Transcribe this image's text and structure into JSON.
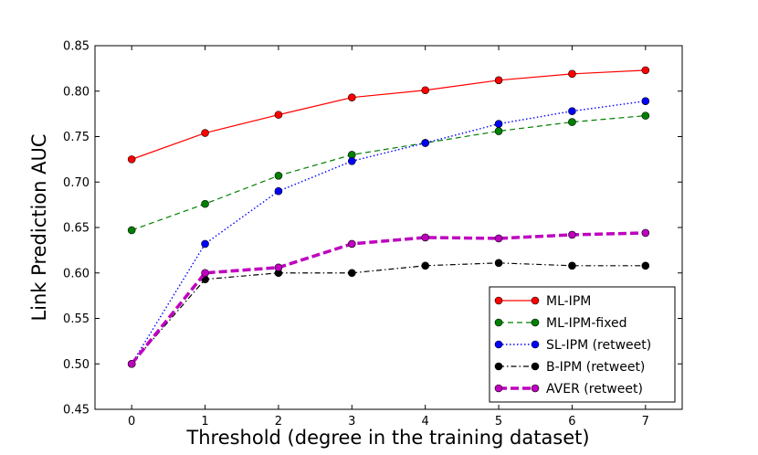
{
  "chart_data": {
    "type": "line",
    "title": "",
    "xlabel": "Threshold (degree in the training dataset)",
    "ylabel": "Link Prediction AUC",
    "xlim": [
      -0.5,
      7.5
    ],
    "ylim": [
      0.45,
      0.85
    ],
    "xticks": [
      "0",
      "1",
      "2",
      "3",
      "4",
      "5",
      "6",
      "7"
    ],
    "yticks": [
      "0.45",
      "0.50",
      "0.55",
      "0.60",
      "0.65",
      "0.70",
      "0.75",
      "0.80",
      "0.85"
    ],
    "grid": false,
    "legend_position": "bottom-right",
    "x": [
      0,
      1,
      2,
      3,
      4,
      5,
      6,
      7
    ],
    "series": [
      {
        "name": "ML-IPM",
        "color": "#ff0000",
        "style": "solid",
        "values": [
          0.725,
          0.754,
          0.774,
          0.793,
          0.801,
          0.812,
          0.819,
          0.823
        ]
      },
      {
        "name": "ML-IPM-fixed",
        "color": "#008000",
        "style": "dashed",
        "values": [
          0.647,
          0.676,
          0.707,
          0.73,
          0.743,
          0.756,
          0.766,
          0.773
        ]
      },
      {
        "name": "SL-IPM (retweet)",
        "color": "#0000ff",
        "style": "dotted",
        "values": [
          0.5,
          0.632,
          0.69,
          0.723,
          0.743,
          0.764,
          0.778,
          0.789
        ]
      },
      {
        "name": "B-IPM (retweet)",
        "color": "#000000",
        "style": "dashdot",
        "values": [
          0.5,
          0.593,
          0.6,
          0.6,
          0.608,
          0.611,
          0.608,
          0.608
        ]
      },
      {
        "name": "AVER (retweet)",
        "color": "#bf00bf",
        "style": "thick-dashed",
        "values": [
          0.5,
          0.6,
          0.606,
          0.632,
          0.639,
          0.638,
          0.642,
          0.644
        ]
      }
    ]
  }
}
